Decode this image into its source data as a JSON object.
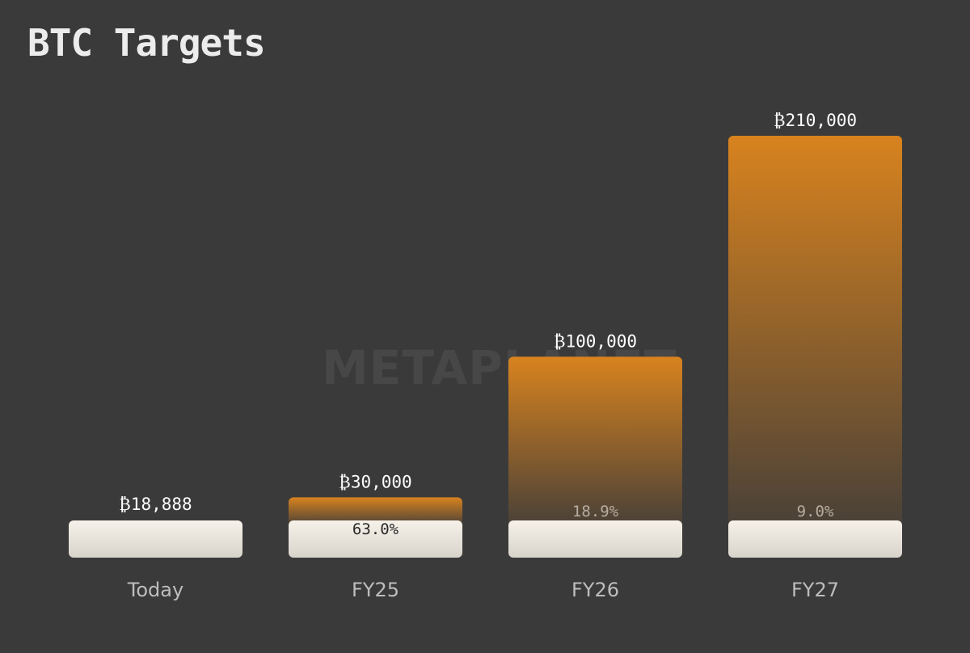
{
  "title": "BTC Targets",
  "watermark": "METAPLANET",
  "colors": {
    "background": "#3a3a3a",
    "bar_top": "#d8831e",
    "bar_bottom": "#4a4138",
    "base_top": "#f6f2ea",
    "base_bottom": "#d8d4cc"
  },
  "chart_data": {
    "type": "bar",
    "categories": [
      "Today",
      "FY25",
      "FY26",
      "FY27"
    ],
    "values": [
      18888,
      30000,
      100000,
      210000
    ],
    "value_labels": [
      "₿18,888",
      "₿30,000",
      "₿100,000",
      "₿210,000"
    ],
    "growth_labels": [
      "",
      "63.0%",
      "18.9%",
      "9.0%"
    ],
    "title": "BTC Targets",
    "xlabel": "",
    "ylabel": "",
    "ylim": [
      0,
      210000
    ],
    "grid": false,
    "legend": "none"
  }
}
